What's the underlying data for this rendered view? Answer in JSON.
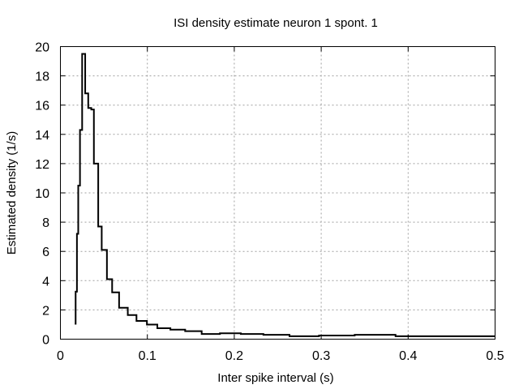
{
  "chart_data": {
    "type": "line",
    "style": "step",
    "title": "ISI density estimate neuron 1 spont. 1",
    "xlabel": "Inter spike interval (s)",
    "ylabel": "Estimated density (1/s)",
    "xlim": [
      0,
      0.5
    ],
    "ylim": [
      0,
      20
    ],
    "grid": true,
    "x_ticks": [
      0,
      0.1,
      0.2,
      0.3,
      0.4,
      0.5
    ],
    "x_tick_labels": [
      "0",
      "0.1",
      "0.2",
      "0.3",
      "0.4",
      "0.5"
    ],
    "y_ticks": [
      0,
      2,
      4,
      6,
      8,
      10,
      12,
      14,
      16,
      18,
      20
    ],
    "y_tick_labels": [
      "0",
      "2",
      "4",
      "6",
      "8",
      "10",
      "12",
      "14",
      "16",
      "18",
      "20"
    ],
    "line_color": "#000000",
    "series": [
      {
        "x": [
          0.0165,
          0.0175,
          0.019,
          0.0205,
          0.0225,
          0.025,
          0.0285,
          0.032,
          0.0355,
          0.0385,
          0.0435,
          0.0475,
          0.0535,
          0.0595,
          0.0675,
          0.0775,
          0.0875,
          0.0995,
          0.1115,
          0.1265,
          0.1435,
          0.1625,
          0.1835,
          0.2075,
          0.2335,
          0.2635,
          0.2975,
          0.3385,
          0.3855,
          0.4995
        ],
        "y": [
          1.05,
          3.25,
          7.2,
          10.5,
          14.3,
          19.5,
          16.8,
          15.8,
          15.7,
          12.0,
          7.7,
          6.1,
          4.1,
          3.2,
          2.15,
          1.65,
          1.25,
          1.0,
          0.75,
          0.65,
          0.55,
          0.35,
          0.4,
          0.35,
          0.3,
          0.2,
          0.25,
          0.3,
          0.2,
          0.2
        ]
      }
    ]
  }
}
